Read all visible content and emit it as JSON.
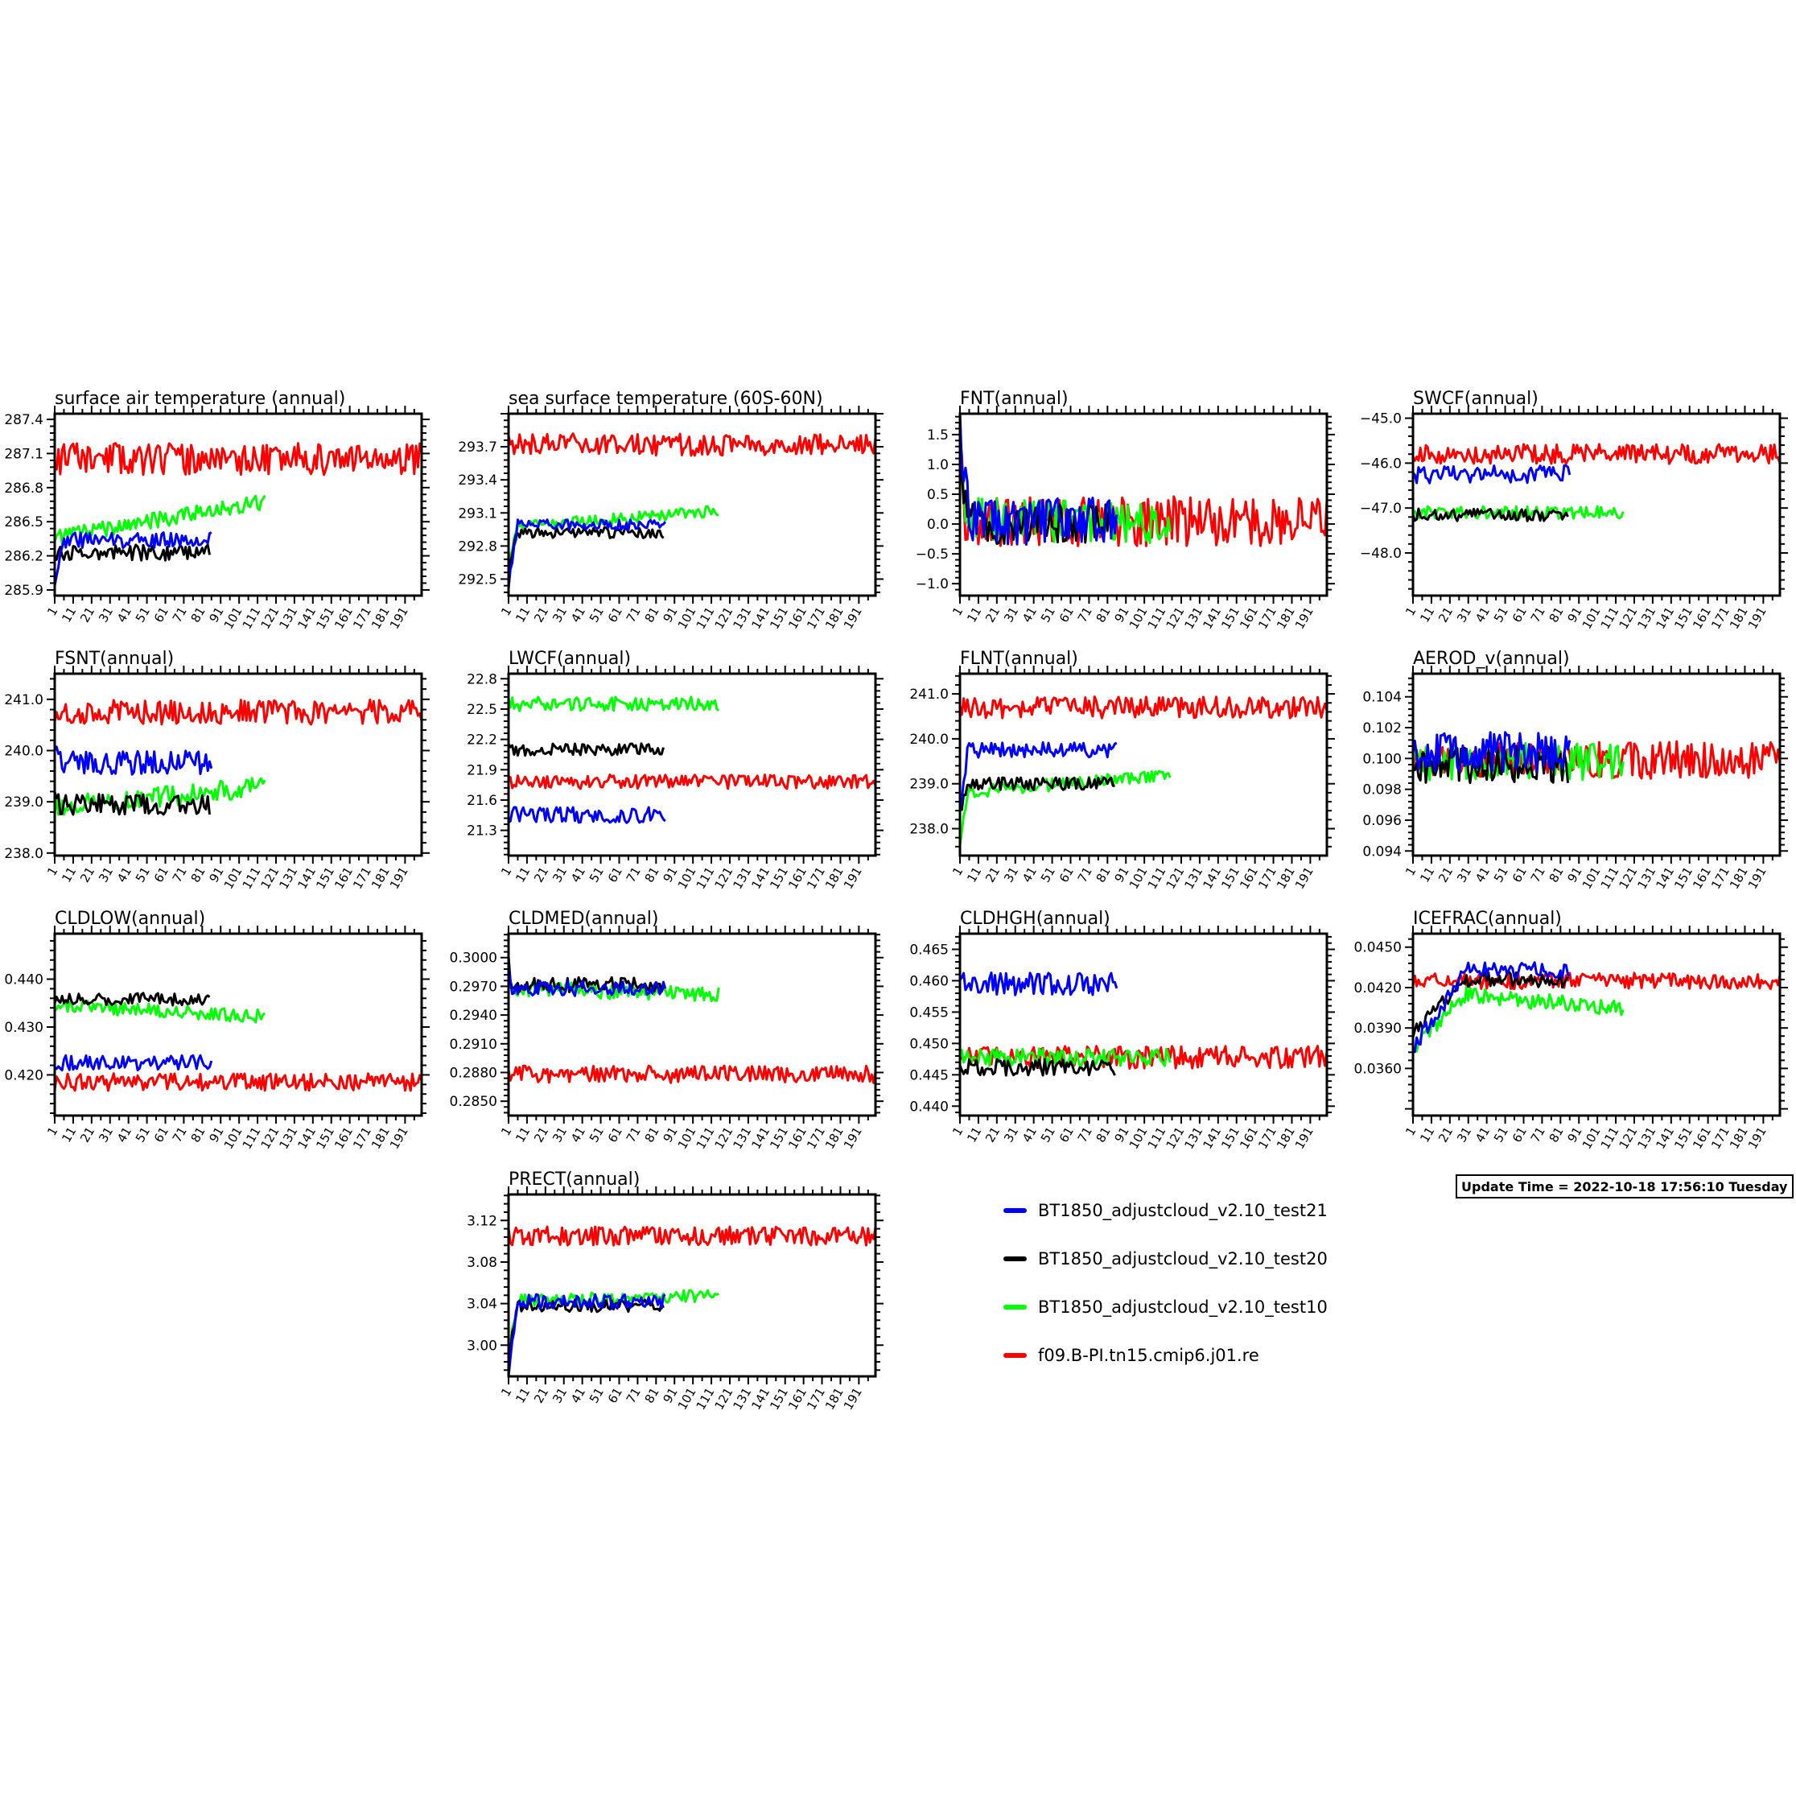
{
  "colors": {
    "test21": "#0000ff",
    "test20": "#000000",
    "test10": "#00ff00",
    "ref": "#ff0000"
  },
  "legend": [
    {
      "key": "test21",
      "label": "BT1850_adjustcloud_v2.10_test21"
    },
    {
      "key": "test20",
      "label": "BT1850_adjustcloud_v2.10_test20"
    },
    {
      "key": "test10",
      "label": "BT1850_adjustcloud_v2.10_test10"
    },
    {
      "key": "ref",
      "label": "f09.B-PI.tn15.cmip6.j01.re"
    }
  ],
  "update_time": "Update Time = 2022-10-18 17:56:10 Tuesday",
  "x_tick_labels": [
    "1",
    "11",
    "21",
    "31",
    "41",
    "51",
    "61",
    "71",
    "81",
    "91",
    "101",
    "111",
    "121",
    "131",
    "141",
    "151",
    "161",
    "171",
    "181",
    "191"
  ],
  "chart_data": [
    {
      "type": "line",
      "title": "surface air temperature (annual)",
      "xlim": [
        1,
        200
      ],
      "ylim": [
        285.85,
        287.45
      ],
      "yticks": [
        285.9,
        286.2,
        286.5,
        286.8,
        287.1,
        287.4
      ],
      "ytick_labels": [
        "285.9",
        "286.2",
        "286.5",
        "286.8",
        "287.1",
        "287.4"
      ],
      "series": [
        {
          "key": "ref",
          "years": 200,
          "base": 287.05,
          "amp": 0.14,
          "trend": 0.0,
          "start": 287.05,
          "settle": 1,
          "seed": 11
        },
        {
          "key": "test10",
          "years": 115,
          "base": 286.36,
          "amp": 0.07,
          "trend": 0.0028,
          "start": 286.3,
          "settle": 1,
          "seed": 12
        },
        {
          "key": "test20",
          "years": 85,
          "base": 286.23,
          "amp": 0.07,
          "trend": 0.0,
          "start": 286.25,
          "settle": 1,
          "seed": 13
        },
        {
          "key": "test21",
          "years": 86,
          "base": 286.34,
          "amp": 0.07,
          "trend": 0.0,
          "start": 285.95,
          "settle": 6,
          "seed": 14
        }
      ]
    },
    {
      "type": "line",
      "title": "sea surface temperature (60S-60N)",
      "xlim": [
        1,
        200
      ],
      "ylim": [
        292.35,
        294.0
      ],
      "yticks": [
        292.5,
        292.8,
        293.1,
        293.4,
        293.7
      ],
      "ytick_labels": [
        "292.5",
        "292.8",
        "293.1",
        "293.4",
        "293.7"
      ],
      "series": [
        {
          "key": "ref",
          "years": 200,
          "base": 293.72,
          "amp": 0.1,
          "trend": 0.0,
          "start": 293.72,
          "settle": 1,
          "seed": 21
        },
        {
          "key": "test10",
          "years": 115,
          "base": 292.97,
          "amp": 0.05,
          "trend": 0.0013,
          "start": 292.6,
          "settle": 6,
          "seed": 22
        },
        {
          "key": "test20",
          "years": 85,
          "base": 292.92,
          "amp": 0.05,
          "trend": 0.0,
          "start": 292.6,
          "settle": 6,
          "seed": 23
        },
        {
          "key": "test21",
          "years": 86,
          "base": 292.99,
          "amp": 0.05,
          "trend": 0.0,
          "start": 292.45,
          "settle": 6,
          "seed": 24
        }
      ]
    },
    {
      "type": "line",
      "title": "FNT(annual)",
      "xlim": [
        1,
        200
      ],
      "ylim": [
        -1.2,
        1.85
      ],
      "yticks": [
        -1.0,
        -0.5,
        0.0,
        0.5,
        1.0,
        1.5
      ],
      "ytick_labels": [
        "−1.0",
        "−0.5",
        "0.0",
        "0.5",
        "1.0",
        "1.5"
      ],
      "series": [
        {
          "key": "ref",
          "years": 200,
          "base": 0.05,
          "amp": 0.42,
          "trend": 0.0,
          "start": 1.3,
          "settle": 4,
          "seed": 31
        },
        {
          "key": "test10",
          "years": 115,
          "base": 0.1,
          "amp": 0.35,
          "trend": -0.001,
          "start": 1.2,
          "settle": 5,
          "seed": 32
        },
        {
          "key": "test20",
          "years": 85,
          "base": 0.0,
          "amp": 0.35,
          "trend": 0.0,
          "start": 1.0,
          "settle": 5,
          "seed": 33
        },
        {
          "key": "test21",
          "years": 86,
          "base": 0.05,
          "amp": 0.4,
          "trend": 0.0,
          "start": 1.6,
          "settle": 6,
          "seed": 34
        }
      ]
    },
    {
      "type": "line",
      "title": "SWCF(annual)",
      "xlim": [
        1,
        200
      ],
      "ylim": [
        -48.95,
        -44.9
      ],
      "yticks": [
        -48.0,
        -47.0,
        -46.0,
        -45.0
      ],
      "ytick_labels": [
        "−48.0",
        "−47.0",
        "−46.0",
        "−45.0"
      ],
      "series": [
        {
          "key": "ref",
          "years": 200,
          "base": -45.8,
          "amp": 0.22,
          "trend": 0.0,
          "start": -45.8,
          "settle": 1,
          "seed": 41
        },
        {
          "key": "test10",
          "years": 115,
          "base": -47.1,
          "amp": 0.14,
          "trend": 0.0,
          "start": -47.1,
          "settle": 1,
          "seed": 42
        },
        {
          "key": "test20",
          "years": 85,
          "base": -47.15,
          "amp": 0.14,
          "trend": 0.0,
          "start": -47.1,
          "settle": 1,
          "seed": 43
        },
        {
          "key": "test21",
          "years": 86,
          "base": -46.25,
          "amp": 0.2,
          "trend": 0.0,
          "start": -46.2,
          "settle": 1,
          "seed": 44
        }
      ]
    },
    {
      "type": "line",
      "title": "FSNT(annual)",
      "xlim": [
        1,
        200
      ],
      "ylim": [
        237.95,
        241.5
      ],
      "yticks": [
        238.0,
        239.0,
        240.0,
        241.0
      ],
      "ytick_labels": [
        "238.0",
        "239.0",
        "240.0",
        "241.0"
      ],
      "series": [
        {
          "key": "ref",
          "years": 200,
          "base": 240.75,
          "amp": 0.24,
          "trend": 0.0,
          "start": 240.75,
          "settle": 1,
          "seed": 51
        },
        {
          "key": "test10",
          "years": 115,
          "base": 238.9,
          "amp": 0.2,
          "trend": 0.0035,
          "start": 239.2,
          "settle": 1,
          "seed": 52
        },
        {
          "key": "test20",
          "years": 85,
          "base": 238.95,
          "amp": 0.2,
          "trend": 0.0,
          "start": 239.3,
          "settle": 3,
          "seed": 53
        },
        {
          "key": "test21",
          "years": 86,
          "base": 239.75,
          "amp": 0.25,
          "trend": 0.0,
          "start": 240.1,
          "settle": 3,
          "seed": 54
        }
      ]
    },
    {
      "type": "line",
      "title": "LWCF(annual)",
      "xlim": [
        1,
        200
      ],
      "ylim": [
        21.05,
        22.85
      ],
      "yticks": [
        21.3,
        21.6,
        21.9,
        22.2,
        22.5,
        22.8
      ],
      "ytick_labels": [
        "21.3",
        "21.6",
        "21.9",
        "22.2",
        "22.5",
        "22.8"
      ],
      "series": [
        {
          "key": "ref",
          "years": 200,
          "base": 21.78,
          "amp": 0.07,
          "trend": 0.0,
          "start": 21.78,
          "settle": 1,
          "seed": 61
        },
        {
          "key": "test10",
          "years": 115,
          "base": 22.55,
          "amp": 0.07,
          "trend": 0.0,
          "start": 22.6,
          "settle": 1,
          "seed": 62
        },
        {
          "key": "test20",
          "years": 85,
          "base": 22.1,
          "amp": 0.06,
          "trend": 0.0,
          "start": 22.15,
          "settle": 1,
          "seed": 63
        },
        {
          "key": "test21",
          "years": 86,
          "base": 21.45,
          "amp": 0.08,
          "trend": 0.0,
          "start": 21.6,
          "settle": 1,
          "seed": 64
        }
      ]
    },
    {
      "type": "line",
      "title": "FLNT(annual)",
      "xlim": [
        1,
        200
      ],
      "ylim": [
        237.4,
        241.45
      ],
      "yticks": [
        238.0,
        239.0,
        240.0,
        241.0
      ],
      "ytick_labels": [
        "238.0",
        "239.0",
        "240.0",
        "241.0"
      ],
      "series": [
        {
          "key": "ref",
          "years": 200,
          "base": 240.7,
          "amp": 0.24,
          "trend": 0.0,
          "start": 240.7,
          "settle": 1,
          "seed": 71
        },
        {
          "key": "test10",
          "years": 115,
          "base": 238.8,
          "amp": 0.14,
          "trend": 0.0035,
          "start": 237.6,
          "settle": 5,
          "seed": 72
        },
        {
          "key": "test20",
          "years": 85,
          "base": 239.0,
          "amp": 0.14,
          "trend": 0.0,
          "start": 238.4,
          "settle": 5,
          "seed": 73
        },
        {
          "key": "test21",
          "years": 86,
          "base": 239.75,
          "amp": 0.17,
          "trend": 0.0,
          "start": 238.3,
          "settle": 5,
          "seed": 74
        }
      ]
    },
    {
      "type": "line",
      "title": "AEROD_v(annual)",
      "xlim": [
        1,
        200
      ],
      "ylim": [
        0.0937,
        0.1055
      ],
      "yticks": [
        0.094,
        0.096,
        0.098,
        0.1,
        0.102,
        0.104
      ],
      "ytick_labels": [
        "0.094",
        "0.096",
        "0.098",
        "0.100",
        "0.102",
        "0.104"
      ],
      "series": [
        {
          "key": "ref",
          "years": 200,
          "base": 0.0999,
          "amp": 0.0012,
          "trend": 0.0,
          "start": 0.0999,
          "settle": 1,
          "seed": 81
        },
        {
          "key": "test10",
          "years": 115,
          "base": 0.0998,
          "amp": 0.0012,
          "trend": 0.0,
          "start": 0.0998,
          "settle": 1,
          "seed": 82
        },
        {
          "key": "test20",
          "years": 85,
          "base": 0.0996,
          "amp": 0.0012,
          "trend": 0.0,
          "start": 0.0996,
          "settle": 1,
          "seed": 83
        },
        {
          "key": "test21",
          "years": 86,
          "base": 0.1004,
          "amp": 0.0013,
          "trend": 0.0,
          "start": 0.1004,
          "settle": 1,
          "seed": 84
        }
      ]
    },
    {
      "type": "line",
      "title": "CLDLOW(annual)",
      "xlim": [
        1,
        200
      ],
      "ylim": [
        0.4115,
        0.4495
      ],
      "yticks": [
        0.42,
        0.43,
        0.44
      ],
      "ytick_labels": [
        "0.420",
        "0.430",
        "0.440"
      ],
      "series": [
        {
          "key": "ref",
          "years": 200,
          "base": 0.4185,
          "amp": 0.0018,
          "trend": 0.0,
          "start": 0.4185,
          "settle": 1,
          "seed": 91
        },
        {
          "key": "test10",
          "years": 115,
          "base": 0.4345,
          "amp": 0.0014,
          "trend": -2e-05,
          "start": 0.4345,
          "settle": 1,
          "seed": 92
        },
        {
          "key": "test20",
          "years": 85,
          "base": 0.4358,
          "amp": 0.0013,
          "trend": 0.0,
          "start": 0.4345,
          "settle": 1,
          "seed": 93
        },
        {
          "key": "test21",
          "years": 86,
          "base": 0.4225,
          "amp": 0.0016,
          "trend": 0.0,
          "start": 0.4205,
          "settle": 1,
          "seed": 94
        }
      ]
    },
    {
      "type": "line",
      "title": "CLDMED(annual)",
      "xlim": [
        1,
        200
      ],
      "ylim": [
        0.2835,
        0.3025
      ],
      "yticks": [
        0.285,
        0.288,
        0.291,
        0.294,
        0.297,
        0.3
      ],
      "ytick_labels": [
        "0.2850",
        "0.2880",
        "0.2910",
        "0.2940",
        "0.2970",
        "0.3000"
      ],
      "series": [
        {
          "key": "ref",
          "years": 200,
          "base": 0.2878,
          "amp": 0.0009,
          "trend": 0.0,
          "start": 0.2878,
          "settle": 1,
          "seed": 101
        },
        {
          "key": "test10",
          "years": 115,
          "base": 0.2968,
          "amp": 0.0008,
          "trend": -6e-06,
          "start": 0.2985,
          "settle": 1,
          "seed": 102
        },
        {
          "key": "test20",
          "years": 85,
          "base": 0.2972,
          "amp": 0.0008,
          "trend": 0.0,
          "start": 0.2995,
          "settle": 3,
          "seed": 103
        },
        {
          "key": "test21",
          "years": 86,
          "base": 0.2968,
          "amp": 0.0008,
          "trend": 0.0,
          "start": 0.2985,
          "settle": 3,
          "seed": 104
        }
      ]
    },
    {
      "type": "line",
      "title": "CLDHGH(annual)",
      "xlim": [
        1,
        200
      ],
      "ylim": [
        0.4385,
        0.4675
      ],
      "yticks": [
        0.44,
        0.445,
        0.45,
        0.455,
        0.46,
        0.465
      ],
      "ytick_labels": [
        "0.440",
        "0.445",
        "0.450",
        "0.455",
        "0.460",
        "0.465"
      ],
      "series": [
        {
          "key": "ref",
          "years": 200,
          "base": 0.4478,
          "amp": 0.0018,
          "trend": 0.0,
          "start": 0.4478,
          "settle": 1,
          "seed": 111
        },
        {
          "key": "test10",
          "years": 115,
          "base": 0.4478,
          "amp": 0.0014,
          "trend": 0.0,
          "start": 0.4478,
          "settle": 1,
          "seed": 112
        },
        {
          "key": "test20",
          "years": 85,
          "base": 0.4462,
          "amp": 0.0013,
          "trend": 0.0,
          "start": 0.4462,
          "settle": 1,
          "seed": 113
        },
        {
          "key": "test21",
          "years": 86,
          "base": 0.4595,
          "amp": 0.0018,
          "trend": 0.0,
          "start": 0.4565,
          "settle": 1,
          "seed": 114
        }
      ]
    },
    {
      "type": "line",
      "title": "ICEFRAC(annual)",
      "xlim": [
        1,
        200
      ],
      "ylim": [
        0.0325,
        0.046
      ],
      "yticks": [
        0.036,
        0.039,
        0.042,
        0.045
      ],
      "ytick_labels": [
        "0.0360",
        "0.0390",
        "0.0420",
        "0.0450"
      ],
      "series": [
        {
          "key": "ref",
          "years": 200,
          "base": 0.0425,
          "amp": 0.0006,
          "trend": 0.0,
          "start": 0.0425,
          "settle": 1,
          "seed": 121
        },
        {
          "key": "test10",
          "years": 115,
          "base": 0.0418,
          "amp": 0.0006,
          "trend": -1.2e-05,
          "start": 0.0375,
          "settle": 30,
          "seed": 122
        },
        {
          "key": "test20",
          "years": 85,
          "base": 0.0426,
          "amp": 0.0006,
          "trend": 0.0,
          "start": 0.0385,
          "settle": 30,
          "seed": 123
        },
        {
          "key": "test21",
          "years": 86,
          "base": 0.0433,
          "amp": 0.0006,
          "trend": 0.0,
          "start": 0.0375,
          "settle": 30,
          "seed": 124
        }
      ]
    },
    {
      "type": "line",
      "title": "PRECT(annual)",
      "xlim": [
        1,
        200
      ],
      "ylim": [
        2.97,
        3.145
      ],
      "yticks": [
        3.0,
        3.04,
        3.08,
        3.12
      ],
      "ytick_labels": [
        "3.00",
        "3.04",
        "3.08",
        "3.12"
      ],
      "series": [
        {
          "key": "ref",
          "years": 200,
          "base": 3.105,
          "amp": 0.009,
          "trend": 0.0,
          "start": 3.105,
          "settle": 1,
          "seed": 131
        },
        {
          "key": "test10",
          "years": 115,
          "base": 3.043,
          "amp": 0.006,
          "trend": 4e-05,
          "start": 2.99,
          "settle": 6,
          "seed": 132
        },
        {
          "key": "test20",
          "years": 85,
          "base": 3.038,
          "amp": 0.006,
          "trend": 0.0,
          "start": 2.99,
          "settle": 6,
          "seed": 133
        },
        {
          "key": "test21",
          "years": 86,
          "base": 3.042,
          "amp": 0.007,
          "trend": 0.0,
          "start": 2.975,
          "settle": 6,
          "seed": 134
        }
      ]
    }
  ]
}
